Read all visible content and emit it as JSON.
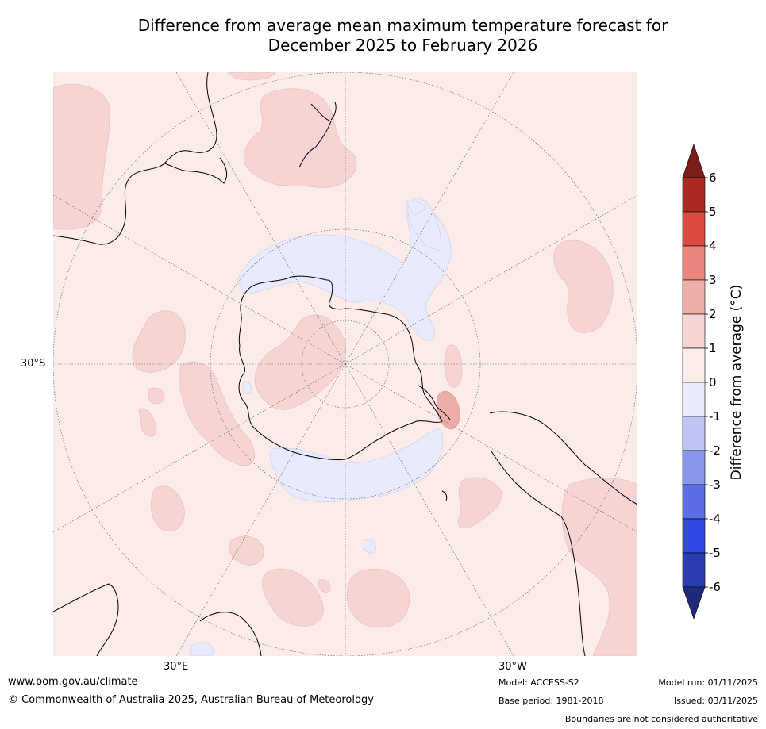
{
  "title_line1": "Difference from average mean maximum temperature forecast for",
  "title_line2": "December 2025 to February 2026",
  "map_labels": {
    "lat_30s": "30°S",
    "lon_30e": "30°E",
    "lon_30w": "30°W"
  },
  "colorbar": {
    "title": "Difference from average (°C)",
    "ticks": [
      "6",
      "5",
      "4",
      "3",
      "2",
      "1",
      "0",
      "-1",
      "-2",
      "-3",
      "-4",
      "-5",
      "-6"
    ],
    "colors": {
      "above_6": "#7b1e1a",
      "5_6": "#ac2a24",
      "4_5": "#dc4b40",
      "3_4": "#e8877e",
      "2_3": "#edaea8",
      "1_2": "#f5d4d3",
      "0_1": "#fbebe9",
      "m1_0": "#e8ebfc",
      "m2_m1": "#c0c6f4",
      "m3_m2": "#8996ed",
      "m4_m3": "#5b6ee6",
      "m5_m4": "#3149e4",
      "m6_m5": "#2a3cae",
      "below_m6": "#1f2a7a"
    }
  },
  "footer": {
    "website": "www.bom.gov.au/climate",
    "copyright": "© Commonwealth of Australia 2025, Australian Bureau of Meteorology",
    "model": "Model: ACCESS-S2",
    "base_period": "Base period: 1981-2018",
    "model_run": "Model run: 01/11/2025",
    "issued": "Issued: 03/11/2025",
    "disclaimer": "Boundaries are not considered authoritative"
  }
}
